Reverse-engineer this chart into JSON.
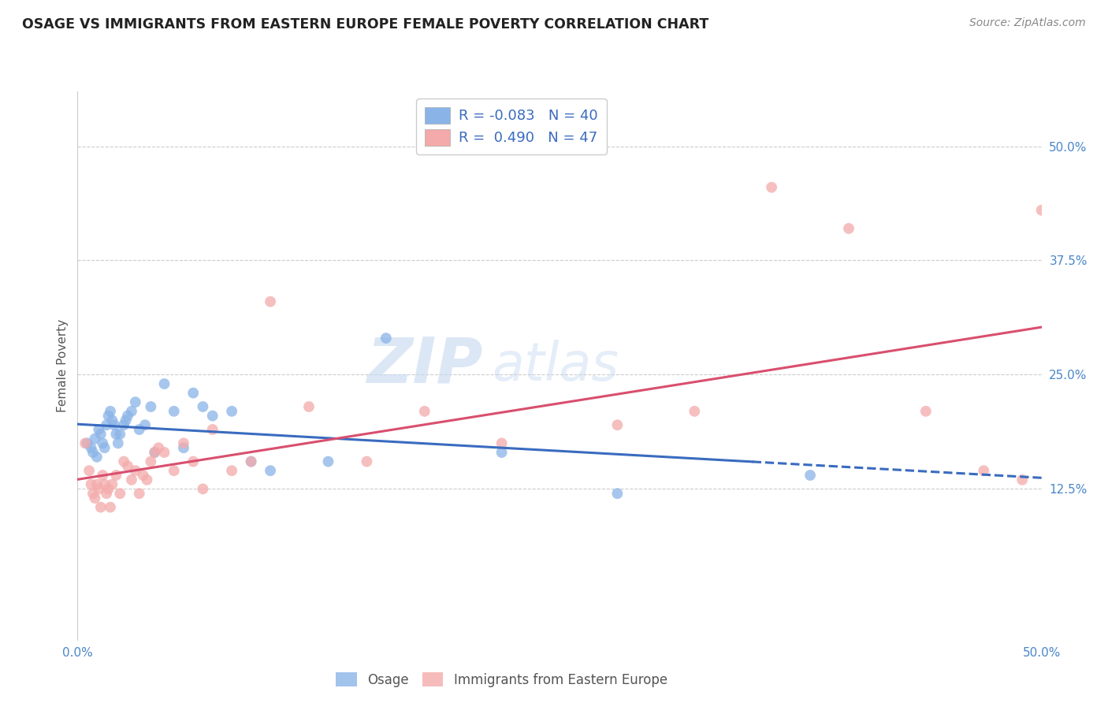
{
  "title": "OSAGE VS IMMIGRANTS FROM EASTERN EUROPE FEMALE POVERTY CORRELATION CHART",
  "source": "Source: ZipAtlas.com",
  "ylabel": "Female Poverty",
  "ytick_labels": [
    "12.5%",
    "25.0%",
    "37.5%",
    "50.0%"
  ],
  "ytick_values": [
    0.125,
    0.25,
    0.375,
    0.5
  ],
  "xlim": [
    0.0,
    0.5
  ],
  "ylim": [
    -0.04,
    0.56
  ],
  "blue_color": "#8ab4e8",
  "pink_color": "#f4aaaa",
  "blue_line_color": "#3a6bbf",
  "pink_line_color": "#d94f6e",
  "watermark_zip": "ZIP",
  "watermark_atlas": "atlas",
  "osage_x": [
    0.005,
    0.007,
    0.008,
    0.009,
    0.01,
    0.011,
    0.012,
    0.013,
    0.014,
    0.015,
    0.016,
    0.017,
    0.018,
    0.019,
    0.02,
    0.021,
    0.022,
    0.024,
    0.025,
    0.026,
    0.028,
    0.03,
    0.032,
    0.035,
    0.038,
    0.04,
    0.045,
    0.05,
    0.055,
    0.06,
    0.065,
    0.07,
    0.08,
    0.09,
    0.1,
    0.13,
    0.16,
    0.22,
    0.28,
    0.38
  ],
  "osage_y": [
    0.175,
    0.17,
    0.165,
    0.18,
    0.16,
    0.19,
    0.185,
    0.175,
    0.17,
    0.195,
    0.205,
    0.21,
    0.2,
    0.195,
    0.185,
    0.175,
    0.185,
    0.195,
    0.2,
    0.205,
    0.21,
    0.22,
    0.19,
    0.195,
    0.215,
    0.165,
    0.24,
    0.21,
    0.17,
    0.23,
    0.215,
    0.205,
    0.21,
    0.155,
    0.145,
    0.155,
    0.29,
    0.165,
    0.12,
    0.14
  ],
  "immig_x": [
    0.004,
    0.006,
    0.007,
    0.008,
    0.009,
    0.01,
    0.011,
    0.012,
    0.013,
    0.014,
    0.015,
    0.016,
    0.017,
    0.018,
    0.02,
    0.022,
    0.024,
    0.026,
    0.028,
    0.03,
    0.032,
    0.034,
    0.036,
    0.038,
    0.04,
    0.042,
    0.045,
    0.05,
    0.055,
    0.06,
    0.065,
    0.07,
    0.08,
    0.09,
    0.1,
    0.12,
    0.15,
    0.18,
    0.22,
    0.28,
    0.32,
    0.36,
    0.4,
    0.44,
    0.47,
    0.49,
    0.5
  ],
  "immig_y": [
    0.175,
    0.145,
    0.13,
    0.12,
    0.115,
    0.13,
    0.125,
    0.105,
    0.14,
    0.13,
    0.12,
    0.125,
    0.105,
    0.13,
    0.14,
    0.12,
    0.155,
    0.15,
    0.135,
    0.145,
    0.12,
    0.14,
    0.135,
    0.155,
    0.165,
    0.17,
    0.165,
    0.145,
    0.175,
    0.155,
    0.125,
    0.19,
    0.145,
    0.155,
    0.33,
    0.215,
    0.155,
    0.21,
    0.175,
    0.195,
    0.21,
    0.455,
    0.41,
    0.21,
    0.145,
    0.135,
    0.43
  ]
}
